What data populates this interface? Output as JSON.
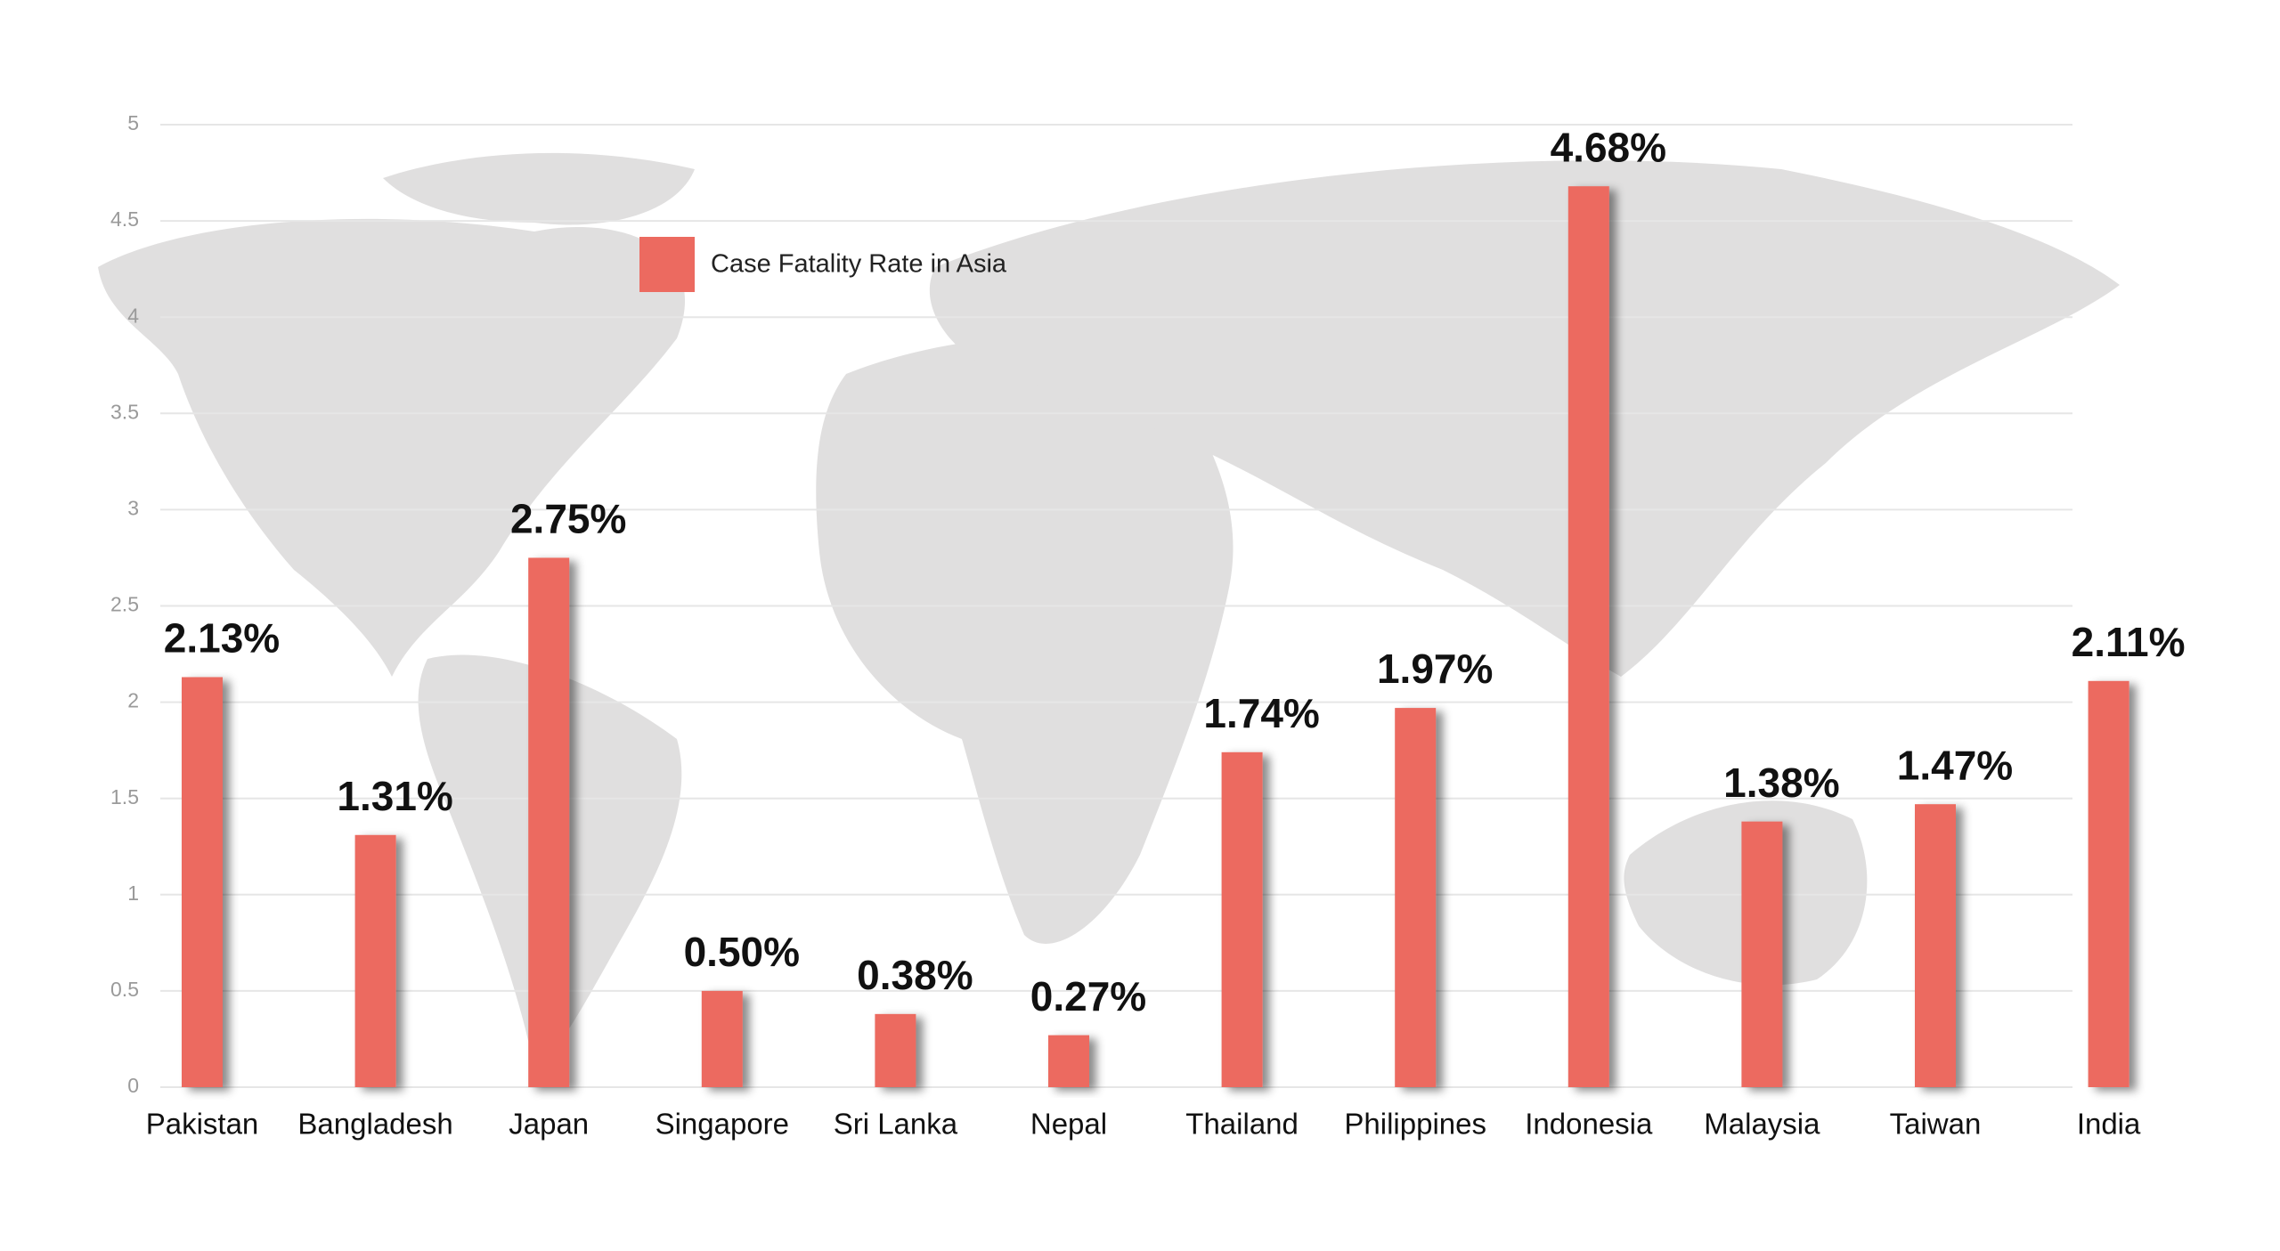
{
  "chart_data": {
    "type": "bar",
    "categories": [
      "Pakistan",
      "Bangladesh",
      "Japan",
      "Singapore",
      "Sri Lanka",
      "Nepal",
      "Thailand",
      "Philippines",
      "Indonesia",
      "Malaysia",
      "Taiwan",
      "India"
    ],
    "series": [
      {
        "name": "Case Fatality Rate in Asia",
        "color": "#ec6a60",
        "values": [
          2.13,
          1.31,
          2.75,
          0.5,
          0.38,
          0.27,
          1.74,
          1.97,
          4.68,
          1.38,
          1.47,
          2.11
        ],
        "value_labels": [
          "2.13%",
          "1.31%",
          "2.75%",
          "0.50%",
          "0.38%",
          "0.27%",
          "1.74%",
          "1.97%",
          "4.68%",
          "1.38%",
          "1.47%",
          "2.11%"
        ]
      }
    ],
    "ylim": [
      0,
      5
    ],
    "yticks": [
      0,
      0.5,
      1,
      1.5,
      2,
      2.5,
      3,
      3.5,
      4,
      4.5,
      5
    ],
    "grid": true
  }
}
